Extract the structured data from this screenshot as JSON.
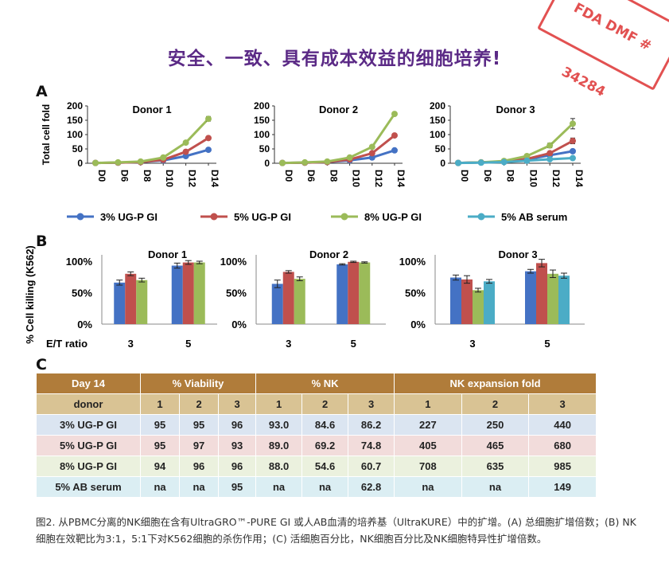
{
  "headline": "安全、一致、具有成本效益的细胞培养!",
  "stamp": "FDA DMF # 34284",
  "panel_labels": [
    "A",
    "B",
    "C"
  ],
  "chart_data": [
    {
      "type": "line",
      "title": "Donor 1",
      "ylabel": "Total cell fold",
      "ylim": [
        0,
        200
      ],
      "yticks": [
        0,
        50,
        100,
        150,
        200
      ],
      "x": [
        "D0",
        "D6",
        "D8",
        "D10",
        "D12",
        "D14"
      ],
      "series": [
        {
          "name": "3% UG-P GI",
          "color": "#4472c4",
          "values": [
            1,
            2,
            4,
            10,
            25,
            47
          ]
        },
        {
          "name": "5% UG-P GI",
          "color": "#c0504d",
          "values": [
            1,
            2,
            4,
            12,
            40,
            88
          ]
        },
        {
          "name": "8% UG-P GI",
          "color": "#9bbb59",
          "values": [
            1,
            3,
            6,
            20,
            72,
            155
          ],
          "errors": [
            0,
            0,
            0,
            2,
            4,
            8
          ]
        }
      ]
    },
    {
      "type": "line",
      "title": "Donor 2",
      "ylim": [
        0,
        200
      ],
      "yticks": [
        0,
        50,
        100,
        150,
        200
      ],
      "x": [
        "D0",
        "D6",
        "D8",
        "D10",
        "D12",
        "D14"
      ],
      "series": [
        {
          "name": "3% UG-P GI",
          "color": "#4472c4",
          "values": [
            1,
            2,
            4,
            10,
            20,
            45
          ]
        },
        {
          "name": "5% UG-P GI",
          "color": "#c0504d",
          "values": [
            1,
            2,
            4,
            13,
            35,
            97
          ]
        },
        {
          "name": "8% UG-P GI",
          "color": "#9bbb59",
          "values": [
            1,
            3,
            6,
            20,
            57,
            172
          ],
          "errors": [
            0,
            0,
            0,
            2,
            4,
            5
          ]
        }
      ]
    },
    {
      "type": "line",
      "title": "Donor 3",
      "ylim": [
        0,
        200
      ],
      "yticks": [
        0,
        50,
        100,
        150,
        200
      ],
      "x": [
        "D0",
        "D6",
        "D8",
        "D10",
        "D12",
        "D14"
      ],
      "series": [
        {
          "name": "3% UG-P GI",
          "color": "#4472c4",
          "values": [
            1,
            3,
            5,
            13,
            28,
            42
          ],
          "errors": [
            0,
            0,
            0,
            2,
            3,
            5
          ]
        },
        {
          "name": "5% UG-P GI",
          "color": "#c0504d",
          "values": [
            1,
            3,
            6,
            15,
            35,
            78
          ],
          "errors": [
            0,
            0,
            0,
            2,
            4,
            10
          ]
        },
        {
          "name": "8% UG-P GI",
          "color": "#9bbb59",
          "values": [
            1,
            3,
            8,
            25,
            62,
            138
          ],
          "errors": [
            0,
            0,
            0,
            3,
            8,
            18
          ]
        },
        {
          "name": "5% AB serum",
          "color": "#4bacc6",
          "values": [
            1,
            2,
            4,
            9,
            14,
            18
          ],
          "errors": [
            0,
            0,
            0,
            1,
            2,
            3
          ]
        }
      ]
    },
    {
      "type": "bar",
      "title": "Donor 1",
      "ylabel": "% Cell killing (K562)",
      "xlabel": "E/T ratio",
      "yticks": [
        "0%",
        "50%",
        "100%"
      ],
      "ylim": [
        0,
        100
      ],
      "categories": [
        "3",
        "5"
      ],
      "series": [
        {
          "name": "3% UG-P GI",
          "color": "#4472c4",
          "values": [
            66,
            93
          ],
          "errors": [
            4,
            4
          ]
        },
        {
          "name": "5% UG-P GI",
          "color": "#c0504d",
          "values": [
            80,
            98
          ],
          "errors": [
            3,
            3
          ]
        },
        {
          "name": "8% UG-P GI",
          "color": "#9bbb59",
          "values": [
            70,
            98
          ],
          "errors": [
            3,
            2
          ]
        }
      ]
    },
    {
      "type": "bar",
      "title": "Donor 2",
      "yticks": [
        "0%",
        "50%",
        "100%"
      ],
      "ylim": [
        0,
        100
      ],
      "categories": [
        "3",
        "5"
      ],
      "series": [
        {
          "name": "3% UG-P GI",
          "color": "#4472c4",
          "values": [
            64,
            95
          ],
          "errors": [
            6,
            1
          ]
        },
        {
          "name": "5% UG-P GI",
          "color": "#c0504d",
          "values": [
            83,
            99
          ],
          "errors": [
            2,
            1
          ]
        },
        {
          "name": "8% UG-P GI",
          "color": "#9bbb59",
          "values": [
            72,
            98
          ],
          "errors": [
            3,
            1
          ]
        }
      ]
    },
    {
      "type": "bar",
      "title": "Donor 3",
      "yticks": [
        "0%",
        "50%",
        "100%"
      ],
      "ylim": [
        0,
        100
      ],
      "categories": [
        "3",
        "5"
      ],
      "series": [
        {
          "name": "3% UG-P GI",
          "color": "#4472c4",
          "values": [
            74,
            84
          ],
          "errors": [
            4,
            3
          ]
        },
        {
          "name": "5% UG-P GI",
          "color": "#c0504d",
          "values": [
            71,
            97
          ],
          "errors": [
            6,
            6
          ]
        },
        {
          "name": "8% UG-P GI",
          "color": "#9bbb59",
          "values": [
            54,
            80
          ],
          "errors": [
            3,
            6
          ]
        },
        {
          "name": "5% AB serum",
          "color": "#4bacc6",
          "values": [
            68,
            77
          ],
          "errors": [
            3,
            4
          ]
        }
      ]
    }
  ],
  "legend": [
    {
      "label": "3% UG-P GI",
      "color": "#4472c4"
    },
    {
      "label": "5% UG-P GI",
      "color": "#c0504d"
    },
    {
      "label": "8% UG-P GI",
      "color": "#9bbb59"
    },
    {
      "label": "5% AB serum",
      "color": "#4bacc6"
    }
  ],
  "table": {
    "header": [
      "Day 14",
      "% Viability",
      "% NK",
      "NK expansion fold"
    ],
    "subheader": [
      "donor",
      "1",
      "2",
      "3",
      "1",
      "2",
      "3",
      "1",
      "2",
      "3"
    ],
    "rows": [
      {
        "label": "3% UG-P GI",
        "bg": "#dbe5f1",
        "cells": [
          "95",
          "95",
          "96",
          "93.0",
          "84.6",
          "86.2",
          "227",
          "250",
          "440"
        ]
      },
      {
        "label": "5% UG-P GI",
        "bg": "#f2dcdb",
        "cells": [
          "95",
          "97",
          "93",
          "89.0",
          "69.2",
          "74.8",
          "405",
          "465",
          "680"
        ]
      },
      {
        "label": "8% UG-P GI",
        "bg": "#ebf1de",
        "cells": [
          "94",
          "96",
          "96",
          "88.0",
          "54.6",
          "60.7",
          "708",
          "635",
          "985"
        ]
      },
      {
        "label": "5% AB serum",
        "bg": "#dbeef3",
        "cells": [
          "na",
          "na",
          "95",
          "na",
          "na",
          "62.8",
          "na",
          "na",
          "149"
        ]
      }
    ],
    "colors": {
      "header": "#b07c3a",
      "subheader": "#d9c394"
    }
  },
  "caption": "图2. 从PBMC分离的NK细胞在含有UltraGRO™-PURE GI 或人AB血清的培养基（UltraKURE）中的扩增。(A) 总细胞扩增倍数；(B) NK细胞在效靶比为3:1，5:1下对K562细胞的杀伤作用；(C) 活细胞百分比，NK细胞百分比及NK细胞特异性扩增倍数。"
}
